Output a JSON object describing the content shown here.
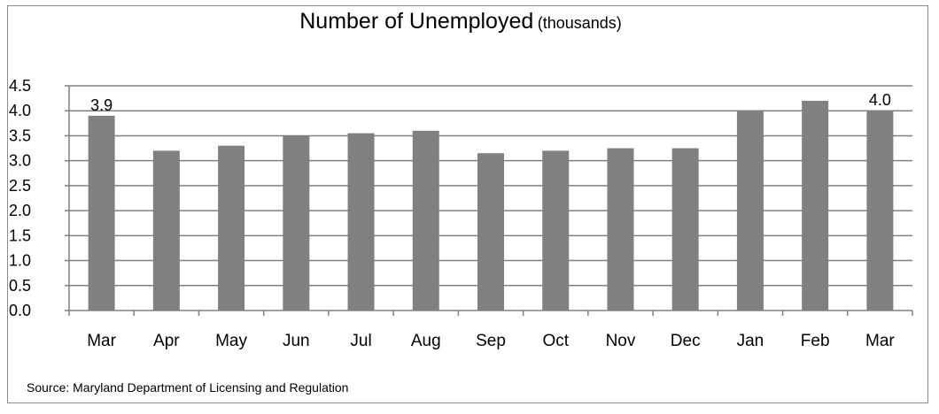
{
  "chart_data": {
    "type": "bar",
    "title": "Number of Unemployed",
    "title_unit": "(thousands)",
    "categories": [
      "Mar",
      "Apr",
      "May",
      "Jun",
      "Jul",
      "Aug",
      "Sep",
      "Oct",
      "Nov",
      "Dec",
      "Jan",
      "Feb",
      "Mar"
    ],
    "values": [
      3.9,
      3.2,
      3.3,
      3.5,
      3.55,
      3.6,
      3.15,
      3.2,
      3.25,
      3.25,
      4.0,
      4.2,
      4.0
    ],
    "data_labels": [
      {
        "index": 0,
        "text": "3.9"
      },
      {
        "index": 12,
        "text": "4.0"
      }
    ],
    "y_ticks": [
      "0.0",
      "0.5",
      "1.0",
      "1.5",
      "2.0",
      "2.5",
      "3.0",
      "3.5",
      "4.0",
      "4.5"
    ],
    "ylim": [
      0,
      4.5
    ],
    "grid": true,
    "legend": "none",
    "bar_color": "#808080",
    "grid_color": "#808080",
    "source": "Source: Maryland Department of Licensing and Regulation"
  }
}
